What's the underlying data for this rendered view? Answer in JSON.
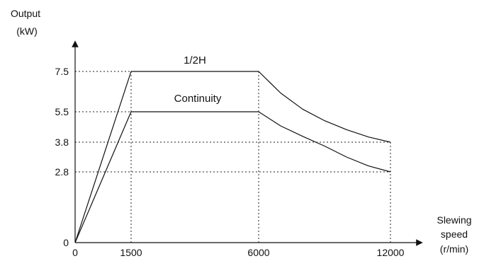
{
  "chart_data": {
    "type": "line",
    "ylabel": [
      "Output",
      "(kW)"
    ],
    "xlabel": [
      "Slewing",
      "speed",
      "(r/min)"
    ],
    "x_ticks": [
      "0",
      "1500",
      "6000",
      "12000"
    ],
    "y_ticks": [
      "0",
      "2.8",
      "3.8",
      "5.5",
      "7.5"
    ],
    "series": [
      {
        "name": "1/2H",
        "x": [
          0,
          1500,
          6000,
          7000,
          8000,
          9000,
          10000,
          11000,
          12000
        ],
        "y": [
          0,
          7.5,
          7.5,
          6.43,
          5.63,
          5.0,
          4.5,
          4.09,
          3.8
        ]
      },
      {
        "name": "Continuity",
        "x": [
          0,
          1500,
          6000,
          7000,
          8000,
          9000,
          10000,
          11000,
          12000
        ],
        "y": [
          0,
          5.5,
          5.5,
          4.71,
          4.13,
          3.67,
          3.3,
          3.0,
          2.8
        ]
      }
    ],
    "guide_lines": "dotted"
  }
}
